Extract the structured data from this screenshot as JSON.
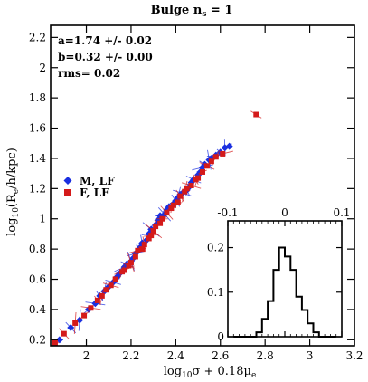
{
  "chart_data": [
    {
      "type": "scatter",
      "title": "Bulge n",
      "title_sub": "s",
      "title_tail": " = 1",
      "xlabel": {
        "pre": "log",
        "sub1": "10",
        "mid": "σ + 0.18μ",
        "sub2": "e"
      },
      "ylabel": {
        "pre": "log",
        "sub1": "10",
        "mid": "(R",
        "sub2": "e",
        "tail": "/h/kpc)"
      },
      "xlim": [
        1.84,
        3.2
      ],
      "ylim": [
        0.16,
        2.28
      ],
      "xticks": [
        "2",
        "2.2",
        "2.4",
        "2.6",
        "2.8",
        "3",
        "3.2"
      ],
      "xtick_values": [
        2.0,
        2.2,
        2.4,
        2.6,
        2.8,
        3.0,
        3.2
      ],
      "yticks": [
        "0.2",
        "0.4",
        "0.6",
        "0.8",
        "1",
        "1.2",
        "1.4",
        "1.6",
        "1.8",
        "2",
        "2.2"
      ],
      "ytick_values": [
        0.2,
        0.4,
        0.6,
        0.8,
        1.0,
        1.2,
        1.4,
        1.6,
        1.8,
        2.0,
        2.2
      ],
      "annotations": [
        "a=1.74 +/- 0.02",
        "b=0.32 +/- 0.00",
        "rms= 0.02"
      ],
      "legend_position": "left",
      "series": [
        {
          "name": "M, LF",
          "marker": "diamond",
          "color": "#1a2fe0",
          "x": [
            1.88,
            1.93,
            1.97,
            2.01,
            2.04,
            2.06,
            2.08,
            2.1,
            2.12,
            2.14,
            2.15,
            2.17,
            2.18,
            2.2,
            2.21,
            2.22,
            2.24,
            2.25,
            2.27,
            2.28,
            2.29,
            2.31,
            2.32,
            2.33,
            2.35,
            2.36,
            2.37,
            2.39,
            2.4,
            2.41,
            2.42,
            2.43,
            2.45,
            2.46,
            2.47,
            2.48,
            2.5,
            2.51,
            2.52,
            2.53,
            2.55,
            2.56,
            2.58,
            2.6,
            2.62,
            2.64
          ],
          "y": [
            0.2,
            0.28,
            0.33,
            0.4,
            0.44,
            0.49,
            0.52,
            0.55,
            0.58,
            0.62,
            0.64,
            0.68,
            0.7,
            0.72,
            0.74,
            0.77,
            0.81,
            0.84,
            0.86,
            0.9,
            0.93,
            0.96,
            0.99,
            1.02,
            1.03,
            1.06,
            1.08,
            1.1,
            1.12,
            1.14,
            1.16,
            1.17,
            1.19,
            1.21,
            1.24,
            1.26,
            1.29,
            1.31,
            1.34,
            1.36,
            1.39,
            1.4,
            1.42,
            1.44,
            1.47,
            1.48
          ]
        },
        {
          "name": "F, LF",
          "marker": "square",
          "color": "#d41a1a",
          "x": [
            1.86,
            1.9,
            1.95,
            1.99,
            2.02,
            2.05,
            2.07,
            2.09,
            2.11,
            2.13,
            2.16,
            2.17,
            2.19,
            2.2,
            2.22,
            2.23,
            2.25,
            2.26,
            2.28,
            2.29,
            2.3,
            2.31,
            2.33,
            2.34,
            2.36,
            2.38,
            2.39,
            2.41,
            2.42,
            2.44,
            2.45,
            2.47,
            2.49,
            2.5,
            2.52,
            2.54,
            2.56,
            2.58,
            2.61,
            2.76
          ],
          "y": [
            0.18,
            0.24,
            0.31,
            0.36,
            0.41,
            0.46,
            0.49,
            0.53,
            0.56,
            0.6,
            0.65,
            0.66,
            0.69,
            0.71,
            0.75,
            0.79,
            0.8,
            0.83,
            0.87,
            0.89,
            0.92,
            0.95,
            0.97,
            1.0,
            1.04,
            1.07,
            1.09,
            1.11,
            1.15,
            1.18,
            1.2,
            1.22,
            1.26,
            1.27,
            1.31,
            1.35,
            1.38,
            1.41,
            1.43,
            1.69
          ]
        }
      ]
    },
    {
      "type": "bar",
      "inset": true,
      "xlim": [
        -0.1,
        0.1
      ],
      "ylim": [
        0,
        0.26
      ],
      "xticks": [
        "-0.1",
        "0",
        "0.1"
      ],
      "xtick_values": [
        -0.1,
        0.0,
        0.1
      ],
      "yticks": [
        "0",
        "0.1",
        "0.2"
      ],
      "ytick_values": [
        0.0,
        0.1,
        0.2
      ],
      "bin_edges": [
        -0.09,
        -0.08,
        -0.07,
        -0.06,
        -0.05,
        -0.04,
        -0.03,
        -0.02,
        -0.01,
        0.0,
        0.01,
        0.02,
        0.03,
        0.04,
        0.05,
        0.06,
        0.07,
        0.08,
        0.09
      ],
      "values": [
        0.0,
        0.0,
        0.0,
        0.0,
        0.01,
        0.04,
        0.08,
        0.15,
        0.2,
        0.18,
        0.15,
        0.09,
        0.06,
        0.03,
        0.01,
        0.0,
        0.0,
        0.0
      ]
    }
  ]
}
